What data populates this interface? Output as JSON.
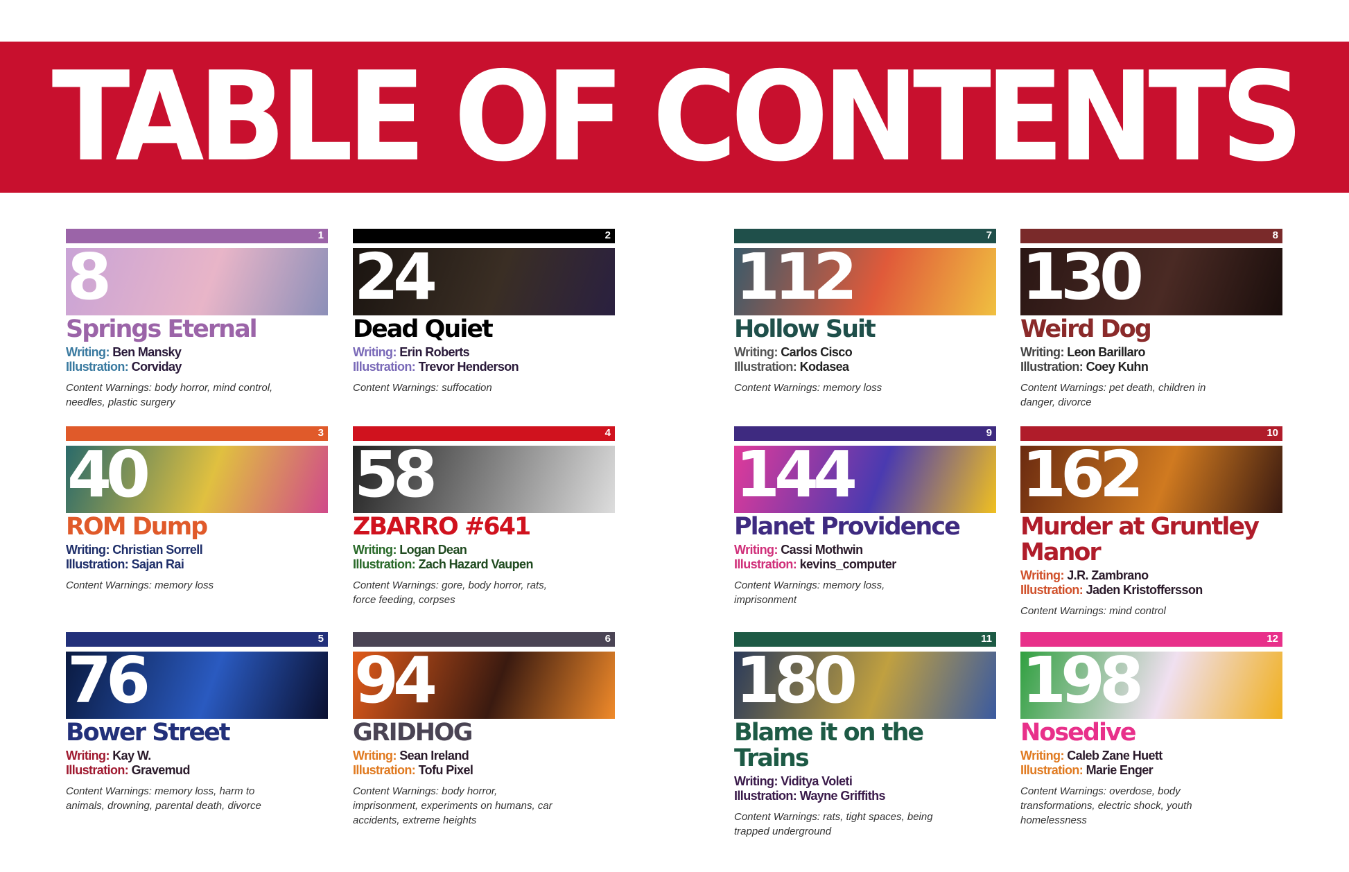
{
  "header": {
    "title": "TABLE OF CONTENTS",
    "color": "#c8102e"
  },
  "writing_label": "Writing:",
  "illustration_label": "Illustration:",
  "cw_label": "Content Warnings:",
  "stories": [
    {
      "num": "1",
      "page": "8",
      "title": "Springs Eternal",
      "writing": "Ben Mansky",
      "illustration": "Corviday",
      "warnings": "body horror, mind control, needles, plastic surgery",
      "bar": "#9b64a8",
      "title_color": "#9b64a8",
      "label_color": "#3a7aa0",
      "name_color": "#2a1a3a",
      "art": [
        "#c9a3d6",
        "#e8b5c8",
        "#8c8fb8"
      ]
    },
    {
      "num": "2",
      "page": "24",
      "title": "Dead Quiet",
      "writing": "Erin Roberts",
      "illustration": "Trevor Henderson",
      "warnings": "suffocation",
      "bar": "#000000",
      "title_color": "#000000",
      "label_color": "#7a6ab8",
      "name_color": "#2a1a3a",
      "art": [
        "#1a1410",
        "#3a2e24",
        "#2a2040"
      ]
    },
    {
      "num": "3",
      "page": "40",
      "title": "ROM Dump",
      "writing": "Christian Sorrell",
      "illustration": "Sajan Rai",
      "warnings": "memory loss",
      "bar": "#e05a2a",
      "title_color": "#e05a2a",
      "label_color": "#1f2f6a",
      "name_color": "#1f2f6a",
      "art": [
        "#2a6a6a",
        "#e0c040",
        "#d04a8a"
      ]
    },
    {
      "num": "4",
      "page": "58",
      "title": "ZBARRO #641",
      "writing": "Logan Dean",
      "illustration": "Zach Hazard Vaupen",
      "warnings": "gore, body horror, rats, force feeding, corpses",
      "bar": "#d0121e",
      "title_color": "#d0121e",
      "label_color": "#2a6a2a",
      "name_color": "#1f4a1f",
      "art": [
        "#222222",
        "#888888",
        "#dddddd"
      ]
    },
    {
      "num": "5",
      "page": "76",
      "title": "Bower Street",
      "writing": "Kay W.",
      "illustration": "Gravemud",
      "warnings": "memory loss, harm to animals, drowning, parental death, divorce",
      "bar": "#22307a",
      "title_color": "#22307a",
      "label_color": "#a01a30",
      "name_color": "#2a1a2a",
      "art": [
        "#0a1a40",
        "#2a5ac0",
        "#0a1030"
      ]
    },
    {
      "num": "6",
      "page": "94",
      "title": "GRIDHOG",
      "writing": "Sean Ireland",
      "illustration": "Tofu Pixel",
      "warnings": "body horror, imprisonment, experiments on humans, car accidents, extreme heights",
      "bar": "#4a4454",
      "title_color": "#4a4454",
      "label_color": "#e07a20",
      "name_color": "#2a1a2a",
      "art": [
        "#e05a1a",
        "#3a1a10",
        "#f08a2a"
      ]
    },
    {
      "num": "7",
      "page": "112",
      "title": "Hollow Suit",
      "writing": "Carlos Cisco",
      "illustration": "Kodasea",
      "warnings": "memory loss",
      "bar": "#1f4f4a",
      "title_color": "#1f4f4a",
      "label_color": "#555555",
      "name_color": "#222222",
      "art": [
        "#3a5a6a",
        "#e05a3a",
        "#f0c040"
      ]
    },
    {
      "num": "8",
      "page": "130",
      "title": "Weird Dog",
      "writing": "Leon Barillaro",
      "illustration": "Coey Kuhn",
      "warnings": "pet death, children in danger, divorce",
      "bar": "#7a2a2a",
      "title_color": "#8a2a2a",
      "label_color": "#444444",
      "name_color": "#222222",
      "art": [
        "#2a1614",
        "#4a2a24",
        "#1a0e0c"
      ]
    },
    {
      "num": "9",
      "page": "144",
      "title": "Planet Providence",
      "writing": "Cassi Mothwin",
      "illustration": "kevins_computer",
      "warnings": "memory loss, imprisonment",
      "bar": "#3e2a80",
      "title_color": "#3e2a80",
      "label_color": "#d0307a",
      "name_color": "#2a1a2a",
      "art": [
        "#e03a9a",
        "#4a3ab0",
        "#f0c020"
      ]
    },
    {
      "num": "10",
      "page": "162",
      "title": "Murder at Gruntley Manor",
      "writing": "J.R. Zambrano",
      "illustration": "Jaden Kristoffersson",
      "warnings": "mind control",
      "bar": "#b01c2a",
      "title_color": "#b01c2a",
      "label_color": "#d0502a",
      "name_color": "#2a1a2a",
      "art": [
        "#6a2a10",
        "#d07a20",
        "#3a1a10"
      ]
    },
    {
      "num": "11",
      "page": "180",
      "title": "Blame it on the Trains",
      "writing": "Viditya Voleti",
      "illustration": "Wayne Griffiths",
      "warnings": "rats, tight spaces, being trapped underground",
      "bar": "#1d5a45",
      "title_color": "#1d5a45",
      "label_color": "#3a1a4a",
      "name_color": "#3a1a4a",
      "art": [
        "#2a3a5a",
        "#c0a040",
        "#3a5aa0"
      ]
    },
    {
      "num": "12",
      "page": "198",
      "title": "Nosedive",
      "writing": "Caleb Zane Huett",
      "illustration": "Marie Enger",
      "warnings": "overdose, body transformations, electric shock, youth homelessness",
      "bar": "#e8308a",
      "title_color": "#e8308a",
      "label_color": "#e07a20",
      "name_color": "#2a1a2a",
      "art": [
        "#30a040",
        "#f0e0f0",
        "#f0b020"
      ]
    }
  ]
}
